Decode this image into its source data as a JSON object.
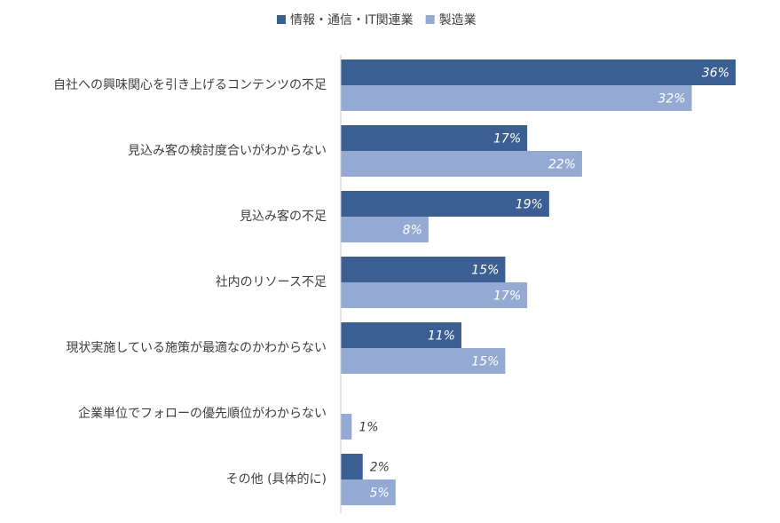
{
  "chart_data": {
    "type": "bar",
    "orientation": "horizontal",
    "categories": [
      "自社への興味関心を引き上げるコンテンツの不足",
      "見込み客の検討度合いがわからない",
      "見込み客の不足",
      "社内のリソース不足",
      "現状実施している施策が最適なのかわからない",
      "企業単位でフォローの優先順位がわからない",
      "その他 (具体的に)"
    ],
    "series": [
      {
        "name": "情報・通信・IT関連業",
        "color": "#3b5f92",
        "values": [
          36,
          17,
          19,
          15,
          11,
          null,
          2
        ],
        "labels": [
          "36%",
          "17%",
          "19%",
          "15%",
          "11%",
          "",
          "2%"
        ]
      },
      {
        "name": "製造業",
        "color": "#95aad2",
        "values": [
          32,
          22,
          8,
          17,
          15,
          1,
          5
        ],
        "labels": [
          "32%",
          "22%",
          "8%",
          "17%",
          "15%",
          "1%",
          "5%"
        ]
      }
    ],
    "xlim": [
      0,
      40
    ],
    "unit": "%",
    "legend_position": "top",
    "grid": false,
    "title": "",
    "xlabel": "",
    "ylabel": ""
  }
}
